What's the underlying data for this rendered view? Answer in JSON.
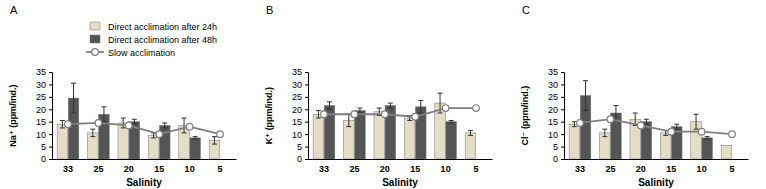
{
  "chart_data": [
    {
      "type": "bar",
      "title": "A",
      "x_label": "Salinity",
      "y_label": "Na⁺ (ppm/ind.)",
      "categories": [
        "33",
        "25",
        "20",
        "15",
        "10",
        "5"
      ],
      "ylim": [
        0,
        35
      ],
      "yticks": [
        0,
        5,
        10,
        15,
        20,
        25,
        30,
        35
      ],
      "grid": false,
      "legend": "upper right",
      "series": [
        {
          "name": "Direct acclimation after 24h",
          "type": "bar",
          "color": "#e3ddc6",
          "values": [
            14,
            10.5,
            14.5,
            9.5,
            13.5,
            7.5
          ],
          "errors": [
            1.5,
            1.5,
            2,
            1,
            3,
            1.5
          ]
        },
        {
          "name": "Direct acclimation after 48h",
          "type": "bar",
          "color": "#555555",
          "values": [
            24.5,
            18,
            15,
            13.5,
            8.5,
            null
          ],
          "errors": [
            6,
            3,
            1,
            1,
            0.5,
            null
          ]
        },
        {
          "name": "Slow acclimation",
          "type": "line",
          "color": "#7f7f7f",
          "marker": "circle",
          "values": [
            14,
            14.5,
            13.5,
            10,
            13,
            10
          ]
        }
      ]
    },
    {
      "type": "bar",
      "title": "B",
      "x_label": "Salinity",
      "y_label": "K⁺ (ppm/ind.)",
      "categories": [
        "33",
        "25",
        "20",
        "15",
        "10",
        "5"
      ],
      "ylim": [
        0,
        35
      ],
      "yticks": [
        0,
        5,
        10,
        15,
        20,
        25,
        30,
        35
      ],
      "grid": false,
      "series": [
        {
          "type": "bar",
          "color": "#e3ddc6",
          "values": [
            18,
            15.5,
            19,
            16.5,
            22.5,
            10.5
          ],
          "errors": [
            1.5,
            2.5,
            1.5,
            1,
            4,
            1
          ]
        },
        {
          "type": "bar",
          "color": "#555555",
          "values": [
            21.5,
            19.5,
            21.5,
            21,
            15,
            null
          ],
          "errors": [
            1.5,
            1,
            1,
            2.5,
            0.5,
            null
          ]
        },
        {
          "type": "line",
          "color": "#7f7f7f",
          "marker": "circle",
          "values": [
            18,
            18,
            18,
            17,
            20.5,
            20.5
          ]
        }
      ]
    },
    {
      "type": "bar",
      "title": "C",
      "x_label": "Salinity",
      "y_label": "Cl⁻ (ppm/ind.)",
      "categories": [
        "33",
        "25",
        "20",
        "15",
        "10",
        "5"
      ],
      "ylim": [
        0,
        35
      ],
      "yticks": [
        0,
        5,
        10,
        15,
        20,
        25,
        30,
        35
      ],
      "grid": false,
      "series": [
        {
          "type": "bar",
          "color": "#e3ddc6",
          "values": [
            14,
            10.5,
            16,
            10.5,
            15,
            5.5
          ],
          "errors": [
            1,
            1.5,
            2.5,
            1,
            3,
            null
          ]
        },
        {
          "type": "bar",
          "color": "#555555",
          "values": [
            25.5,
            18.5,
            15,
            13,
            8.5,
            null
          ],
          "errors": [
            6,
            3,
            1,
            1,
            0.5,
            null
          ]
        },
        {
          "type": "line",
          "color": "#7f7f7f",
          "marker": "circle",
          "values": [
            14.5,
            16,
            13.5,
            11,
            11,
            10
          ]
        }
      ]
    }
  ]
}
